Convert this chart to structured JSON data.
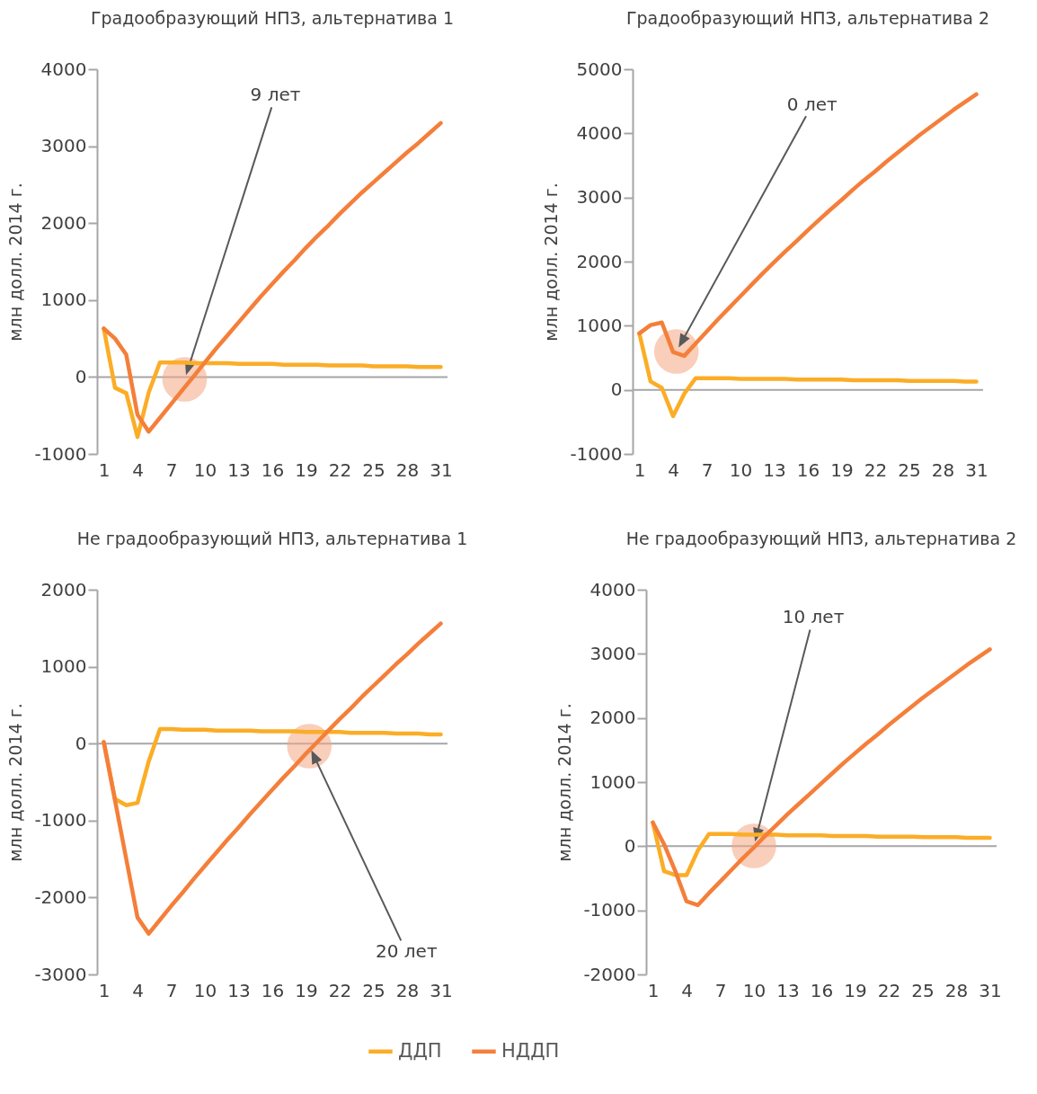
{
  "chart_data": [
    {
      "type": "line",
      "title": "Градообразующий НПЗ, альтернатива 1",
      "ylabel": "млн долл. 2014 г.",
      "x": [
        1,
        2,
        3,
        4,
        5,
        6,
        7,
        8,
        9,
        10,
        11,
        12,
        13,
        14,
        15,
        16,
        17,
        18,
        19,
        20,
        21,
        22,
        23,
        24,
        25,
        26,
        27,
        28,
        29,
        30,
        31
      ],
      "xlim": [
        0.4,
        31.6
      ],
      "xticks": [
        1,
        4,
        7,
        10,
        13,
        16,
        19,
        22,
        25,
        28,
        31
      ],
      "ylim": [
        -1000,
        4000
      ],
      "yticks": [
        -1000,
        0,
        1000,
        2000,
        3000,
        4000
      ],
      "series": [
        {
          "name": "ДДП",
          "color": "#fbad26",
          "values": [
            630,
            -140,
            -210,
            -780,
            -200,
            190,
            190,
            190,
            180,
            180,
            180,
            180,
            170,
            170,
            170,
            170,
            160,
            160,
            160,
            160,
            150,
            150,
            150,
            150,
            140,
            140,
            140,
            140,
            130,
            130,
            130
          ]
        },
        {
          "name": "НДДП",
          "color": "#f47f3a",
          "values": [
            630,
            500,
            290,
            -490,
            -710,
            -530,
            -350,
            -170,
            10,
            190,
            370,
            540,
            710,
            880,
            1050,
            1210,
            1370,
            1520,
            1680,
            1830,
            1970,
            2120,
            2260,
            2400,
            2530,
            2660,
            2790,
            2920,
            3040,
            3170,
            3300
          ]
        }
      ],
      "ref_lines": [
        {
          "axis": "y",
          "value": 0,
          "color": "#a6a6a6"
        }
      ],
      "annotations": [
        "9 лет"
      ],
      "grid": false,
      "legend": "bottom"
    },
    {
      "type": "line",
      "title": "Градообразующий НПЗ, альтернатива 2",
      "ylabel": "млн долл. 2014 г.",
      "x": [
        1,
        2,
        3,
        4,
        5,
        6,
        7,
        8,
        9,
        10,
        11,
        12,
        13,
        14,
        15,
        16,
        17,
        18,
        19,
        20,
        21,
        22,
        23,
        24,
        25,
        26,
        27,
        28,
        29,
        30,
        31
      ],
      "xlim": [
        0.4,
        31.6
      ],
      "xticks": [
        1,
        4,
        7,
        10,
        13,
        16,
        19,
        22,
        25,
        28,
        31
      ],
      "ylim": [
        -1000,
        5000
      ],
      "yticks": [
        -1000,
        0,
        1000,
        2000,
        3000,
        4000,
        5000
      ],
      "series": [
        {
          "name": "ДДП",
          "color": "#fbad26",
          "values": [
            880,
            130,
            30,
            -410,
            -60,
            180,
            180,
            180,
            180,
            170,
            170,
            170,
            170,
            170,
            160,
            160,
            160,
            160,
            160,
            150,
            150,
            150,
            150,
            150,
            140,
            140,
            140,
            140,
            140,
            130,
            130
          ]
        },
        {
          "name": "НДДП",
          "color": "#f47f3a",
          "values": [
            880,
            1010,
            1050,
            590,
            530,
            720,
            910,
            1100,
            1280,
            1460,
            1640,
            1820,
            1990,
            2160,
            2320,
            2490,
            2650,
            2810,
            2960,
            3120,
            3270,
            3410,
            3560,
            3700,
            3840,
            3980,
            4110,
            4240,
            4370,
            4490,
            4610
          ]
        }
      ],
      "ref_lines": [
        {
          "axis": "y",
          "value": 0,
          "color": "#a6a6a6"
        }
      ],
      "annotations": [
        "0 лет"
      ],
      "grid": false,
      "legend": "bottom"
    },
    {
      "type": "line",
      "title": "Не градообразующий НПЗ, альтернатива 1",
      "ylabel": "млн долл. 2014 г.",
      "x": [
        1,
        2,
        3,
        4,
        5,
        6,
        7,
        8,
        9,
        10,
        11,
        12,
        13,
        14,
        15,
        16,
        17,
        18,
        19,
        20,
        21,
        22,
        23,
        24,
        25,
        26,
        27,
        28,
        29,
        30,
        31
      ],
      "xlim": [
        0.4,
        31.6
      ],
      "xticks": [
        1,
        4,
        7,
        10,
        13,
        16,
        19,
        22,
        25,
        28,
        31
      ],
      "ylim": [
        -3000,
        2000
      ],
      "yticks": [
        -3000,
        -2000,
        -1000,
        0,
        1000,
        2000
      ],
      "series": [
        {
          "name": "ДДП",
          "color": "#fbad26",
          "values": [
            20,
            -720,
            -800,
            -770,
            -230,
            190,
            190,
            180,
            180,
            180,
            170,
            170,
            170,
            170,
            160,
            160,
            160,
            160,
            150,
            150,
            150,
            150,
            140,
            140,
            140,
            140,
            130,
            130,
            130,
            120,
            120
          ]
        },
        {
          "name": "НДДП",
          "color": "#f47f3a",
          "values": [
            20,
            -740,
            -1500,
            -2260,
            -2470,
            -2290,
            -2110,
            -1940,
            -1760,
            -1590,
            -1420,
            -1250,
            -1090,
            -920,
            -760,
            -600,
            -440,
            -290,
            -130,
            20,
            170,
            320,
            460,
            610,
            750,
            890,
            1030,
            1160,
            1300,
            1430,
            1560
          ]
        }
      ],
      "ref_lines": [
        {
          "axis": "y",
          "value": 0,
          "color": "#a6a6a6"
        }
      ],
      "annotations": [
        "20 лет"
      ],
      "grid": false,
      "legend": "bottom"
    },
    {
      "type": "line",
      "title": "Не градообразующий НПЗ, альтернатива 2",
      "ylabel": "млн долл. 2014 г.",
      "x": [
        1,
        2,
        3,
        4,
        5,
        6,
        7,
        8,
        9,
        10,
        11,
        12,
        13,
        14,
        15,
        16,
        17,
        18,
        19,
        20,
        21,
        22,
        23,
        24,
        25,
        26,
        27,
        28,
        29,
        30,
        31
      ],
      "xlim": [
        0.4,
        31.6
      ],
      "xticks": [
        1,
        4,
        7,
        10,
        13,
        16,
        19,
        22,
        25,
        28,
        31
      ],
      "ylim": [
        -2000,
        4000
      ],
      "yticks": [
        -2000,
        -1000,
        0,
        1000,
        2000,
        3000,
        4000
      ],
      "series": [
        {
          "name": "ДДП",
          "color": "#fbad26",
          "values": [
            370,
            -390,
            -450,
            -450,
            -70,
            190,
            190,
            190,
            180,
            180,
            180,
            180,
            170,
            170,
            170,
            170,
            160,
            160,
            160,
            160,
            150,
            150,
            150,
            150,
            140,
            140,
            140,
            140,
            130,
            130,
            130
          ]
        },
        {
          "name": "НДДП",
          "color": "#f47f3a",
          "values": [
            370,
            30,
            -390,
            -860,
            -920,
            -730,
            -550,
            -370,
            -190,
            -20,
            160,
            330,
            500,
            660,
            820,
            980,
            1140,
            1300,
            1450,
            1600,
            1740,
            1890,
            2030,
            2170,
            2310,
            2440,
            2570,
            2700,
            2830,
            2950,
            3070
          ]
        }
      ],
      "ref_lines": [
        {
          "axis": "y",
          "value": 0,
          "color": "#a6a6a6"
        }
      ],
      "annotations": [
        "10 лет"
      ],
      "grid": false,
      "legend": "bottom"
    }
  ]
}
